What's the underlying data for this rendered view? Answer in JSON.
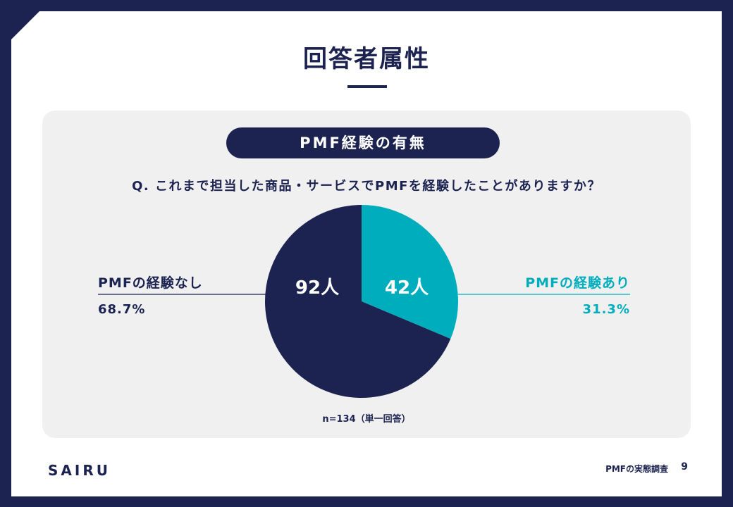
{
  "slide": {
    "title": "回答者属性",
    "section_label": "PMF経験の有無",
    "question": "Q. これまで担当した商品・サービスでPMFを経験したことがありますか？",
    "note": "n=134（単一回答）"
  },
  "footer": {
    "logo": "SAIRU",
    "doc_title": "PMFの実態調査",
    "page_number": "9"
  },
  "colors": {
    "navy": "#1c2350",
    "teal": "#00adbc",
    "panel_bg": "#f0f0f0"
  },
  "chart_data": {
    "type": "pie",
    "title": "",
    "total": 134,
    "series": [
      {
        "name": "PMFの経験あり",
        "value": 42,
        "value_label": "42人",
        "percent_label": "31.3%",
        "color": "#00adbc"
      },
      {
        "name": "PMFの経験なし",
        "value": 92,
        "value_label": "92人",
        "percent_label": "68.7%",
        "color": "#1c2350"
      }
    ]
  }
}
